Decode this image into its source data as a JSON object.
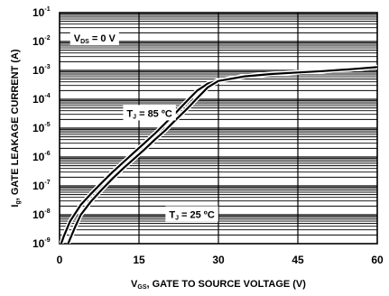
{
  "chart_data": {
    "type": "line",
    "title": "",
    "xlabel": {
      "main_prefix": "V",
      "sub": "GS",
      "rest": ", GATE TO SOURCE VOLTAGE (V)"
    },
    "ylabel": {
      "main_prefix": "I",
      "sub": "g",
      "rest": ", GATE LEAKAGE CURRENT (A)"
    },
    "xlim": [
      0,
      60
    ],
    "ylim_log10": [
      -9,
      -1
    ],
    "y_scale": "log",
    "grid": true,
    "x_ticks": [
      {
        "value": 0,
        "label": "0"
      },
      {
        "value": 15,
        "label": "15"
      },
      {
        "value": 30,
        "label": "30"
      },
      {
        "value": 45,
        "label": "45"
      },
      {
        "value": 60,
        "label": "60"
      }
    ],
    "y_ticks": [
      {
        "exp": -1,
        "base": "10",
        "sup": "-1"
      },
      {
        "exp": -2,
        "base": "10",
        "sup": "-2"
      },
      {
        "exp": -3,
        "base": "10",
        "sup": "-3"
      },
      {
        "exp": -4,
        "base": "10",
        "sup": "-4"
      },
      {
        "exp": -5,
        "base": "10",
        "sup": "-5"
      },
      {
        "exp": -6,
        "base": "10",
        "sup": "-6"
      },
      {
        "exp": -7,
        "base": "10",
        "sup": "-7"
      },
      {
        "exp": -8,
        "base": "10",
        "sup": "-8"
      },
      {
        "exp": -9,
        "base": "10",
        "sup": "-9"
      }
    ],
    "annotations": [
      {
        "id": "vds",
        "prefix": "V",
        "sub": "DS",
        "rest": " = 0 V",
        "x": 2,
        "y_log": -1.6
      },
      {
        "id": "tj85",
        "prefix": "T",
        "sub": "J",
        "rest": " = 85 ºC",
        "x": 12,
        "y_log": -4.2
      },
      {
        "id": "tj25",
        "prefix": "T",
        "sub": "J",
        "rest": " = 25 ºC",
        "x": 20,
        "y_log": -7.7
      }
    ],
    "series": [
      {
        "id": "tj85",
        "x": [
          0.3,
          0.8,
          2,
          4,
          6,
          8,
          10,
          12,
          14,
          16,
          18,
          20,
          22,
          24,
          26,
          28,
          30,
          35,
          40,
          45,
          50,
          55,
          60
        ],
        "y": [
          1e-09,
          1.8e-09,
          6e-09,
          2.2e-08,
          5.5e-08,
          1.3e-07,
          3e-07,
          6.5e-07,
          1.4e-06,
          3e-06,
          6.5e-06,
          1.5e-05,
          3.5e-05,
          8.5e-05,
          0.0002,
          0.00035,
          0.00045,
          0.00063,
          0.00076,
          0.00086,
          0.00096,
          0.0011,
          0.0013
        ]
      },
      {
        "id": "tj25",
        "x": [
          1.6,
          2.2,
          3,
          4,
          6,
          8,
          10,
          12,
          14,
          16,
          18,
          20,
          22,
          24,
          26,
          28,
          30,
          35,
          40,
          45,
          50,
          55,
          60
        ],
        "y": [
          1e-09,
          1.8e-09,
          4e-09,
          1e-08,
          3e-08,
          7.5e-08,
          1.8e-07,
          4e-07,
          8.5e-07,
          1.8e-06,
          4e-06,
          8.5e-06,
          2e-05,
          4.5e-05,
          0.00011,
          0.00026,
          0.00043,
          0.00062,
          0.00075,
          0.00085,
          0.00095,
          0.0011,
          0.0013
        ]
      }
    ]
  }
}
